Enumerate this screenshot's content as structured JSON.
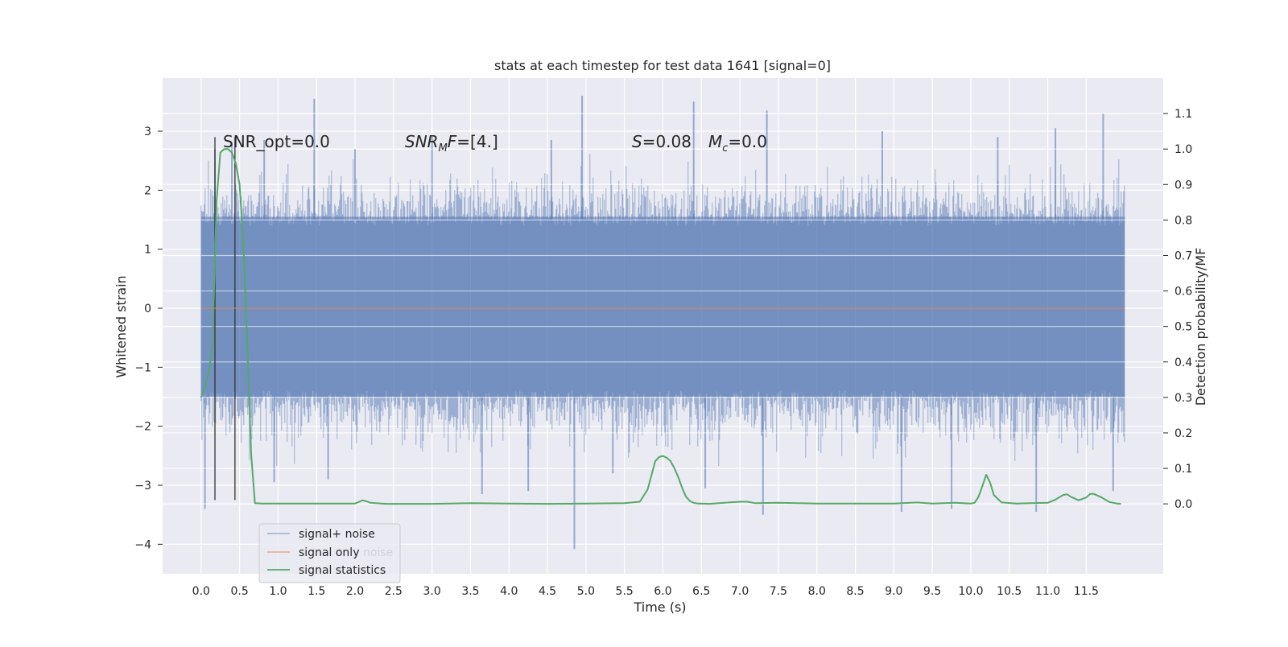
{
  "chart_data": {
    "type": "line",
    "title": "stats at each timestep for test data 1641 [signal=0]",
    "xlabel": "Time (s)",
    "ylabel_left": "Whitened strain",
    "ylabel_right": "Detection probability/MF",
    "xlim": [
      -0.5,
      12.5
    ],
    "ylim_left": [
      -4.5,
      3.9
    ],
    "ylim_right": [
      -0.197,
      1.2
    ],
    "grid": true,
    "background": "#eaeaf2",
    "x_ticks": [
      "0.0",
      "0.5",
      "1.0",
      "1.5",
      "2.0",
      "2.5",
      "3.0",
      "3.5",
      "4.0",
      "4.5",
      "5.0",
      "5.5",
      "6.0",
      "6.5",
      "7.0",
      "7.5",
      "8.0",
      "8.5",
      "9.0",
      "9.5",
      "10.0",
      "10.5",
      "11.0",
      "11.5"
    ],
    "y_ticks_left": [
      "−4",
      "−3",
      "−2",
      "−1",
      "0",
      "1",
      "2",
      "3"
    ],
    "y_ticks_right": [
      "0.0",
      "0.1",
      "0.2",
      "0.3",
      "0.4",
      "0.5",
      "0.6",
      "0.7",
      "0.8",
      "0.9",
      "1.0",
      "1.1"
    ],
    "annotations": {
      "snr_opt": "SNR_opt=0.0",
      "snr_mf_prefix": "SNR",
      "snr_mf_sub": "M",
      "snr_mf_suffix": "F=[4.]",
      "s_var": "S",
      "s_val": "=0.08",
      "mc_var": "M",
      "mc_sub": "c",
      "mc_val": "=0.0"
    },
    "vlines_x": [
      0.18,
      0.44
    ],
    "legend": {
      "placement": "lower-left",
      "entries": [
        "signal+ noise",
        "signal only",
        "signal statistics"
      ],
      "hidden_text": "noise"
    },
    "series": [
      {
        "name": "signal+ noise",
        "color": "#4c72b0",
        "kind": "noise",
        "x_range": [
          0.0,
          12.0
        ],
        "band": [
          -2.2,
          2.2
        ],
        "peaks_up": [
          [
            0.18,
            2.7
          ],
          [
            0.4,
            2.8
          ],
          [
            0.82,
            2.85
          ],
          [
            1.47,
            3.55
          ],
          [
            2.0,
            2.7
          ],
          [
            3.0,
            2.9
          ],
          [
            4.55,
            2.85
          ],
          [
            4.95,
            3.6
          ],
          [
            6.4,
            3.5
          ],
          [
            7.35,
            3.35
          ],
          [
            8.85,
            3.0
          ],
          [
            10.35,
            2.9
          ],
          [
            11.1,
            3.05
          ],
          [
            11.72,
            3.3
          ]
        ],
        "peaks_down": [
          [
            0.05,
            -3.4
          ],
          [
            0.95,
            -2.95
          ],
          [
            1.65,
            -2.9
          ],
          [
            3.65,
            -3.15
          ],
          [
            4.25,
            -3.1
          ],
          [
            4.85,
            -4.08
          ],
          [
            5.35,
            -2.8
          ],
          [
            6.55,
            -3.05
          ],
          [
            7.3,
            -3.5
          ],
          [
            9.1,
            -3.45
          ],
          [
            9.75,
            -3.4
          ],
          [
            10.85,
            -3.45
          ],
          [
            11.85,
            -3.1
          ]
        ]
      },
      {
        "name": "signal only",
        "color": "#dd8452",
        "x": [
          0.0,
          12.0
        ],
        "y": [
          0.0,
          0.0
        ]
      },
      {
        "name": "signal statistics",
        "color": "#55a868",
        "axis": "right",
        "x": [
          0.0,
          0.05,
          0.1,
          0.15,
          0.2,
          0.25,
          0.3,
          0.35,
          0.4,
          0.45,
          0.5,
          0.55,
          0.6,
          0.65,
          0.7,
          0.8,
          1.0,
          1.5,
          2.0,
          2.1,
          2.15,
          2.2,
          2.4,
          3.0,
          3.5,
          4.0,
          4.5,
          5.0,
          5.5,
          5.7,
          5.8,
          5.85,
          5.9,
          5.95,
          6.0,
          6.05,
          6.1,
          6.15,
          6.2,
          6.25,
          6.3,
          6.35,
          6.4,
          6.45,
          6.5,
          6.6,
          7.0,
          7.1,
          7.2,
          7.5,
          8.0,
          8.5,
          9.0,
          9.3,
          9.5,
          9.8,
          10.0,
          10.05,
          10.1,
          10.15,
          10.2,
          10.25,
          10.3,
          10.4,
          10.6,
          11.0,
          11.1,
          11.2,
          11.25,
          11.3,
          11.4,
          11.5,
          11.55,
          11.6,
          11.7,
          11.8,
          11.9,
          11.95
        ],
        "y": [
          0.3,
          0.33,
          0.37,
          0.45,
          0.85,
          0.99,
          1.0,
          1.0,
          0.99,
          0.96,
          0.9,
          0.73,
          0.45,
          0.14,
          0.002,
          0.001,
          0.001,
          0.001,
          0.001,
          0.01,
          0.007,
          0.003,
          0.0,
          0.0,
          0.002,
          0.001,
          0.0,
          0.001,
          0.002,
          0.006,
          0.04,
          0.08,
          0.12,
          0.132,
          0.135,
          0.13,
          0.12,
          0.1,
          0.075,
          0.045,
          0.02,
          0.008,
          0.003,
          0.001,
          0.001,
          0.0,
          0.006,
          0.006,
          0.002,
          0.003,
          0.001,
          0.001,
          0.001,
          0.004,
          0.001,
          0.003,
          0.001,
          0.003,
          0.02,
          0.05,
          0.082,
          0.06,
          0.025,
          0.004,
          0.001,
          0.003,
          0.012,
          0.025,
          0.027,
          0.02,
          0.01,
          0.018,
          0.028,
          0.028,
          0.018,
          0.005,
          0.001,
          0.0
        ]
      }
    ]
  }
}
